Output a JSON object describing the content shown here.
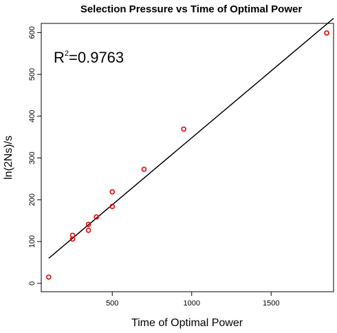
{
  "chart_data": {
    "type": "scatter",
    "title": "Selection Pressure vs Time of Optimal Power",
    "xlabel": "Time of Optimal Power",
    "ylabel": "ln(2Ns)/s",
    "annotation": {
      "base": "R",
      "sup": "2",
      "rest": "=0.9763"
    },
    "xlim": [
      53,
      1893
    ],
    "ylim": [
      -20,
      622
    ],
    "xticks": [
      500,
      1000,
      1500
    ],
    "yticks": [
      0,
      100,
      200,
      300,
      400,
      500,
      600
    ],
    "points": [
      {
        "x": 100,
        "y": 15
      },
      {
        "x": 250,
        "y": 106
      },
      {
        "x": 250,
        "y": 115
      },
      {
        "x": 350,
        "y": 127
      },
      {
        "x": 350,
        "y": 141
      },
      {
        "x": 400,
        "y": 159
      },
      {
        "x": 500,
        "y": 184
      },
      {
        "x": 500,
        "y": 219
      },
      {
        "x": 700,
        "y": 273
      },
      {
        "x": 950,
        "y": 369
      },
      {
        "x": 1850,
        "y": 599
      }
    ],
    "fit_line": {
      "x": [
        100,
        1893
      ],
      "y": [
        60,
        634
      ]
    },
    "point_color": "#e00000",
    "line_color": "#000000",
    "grid": false,
    "legend": "none"
  }
}
